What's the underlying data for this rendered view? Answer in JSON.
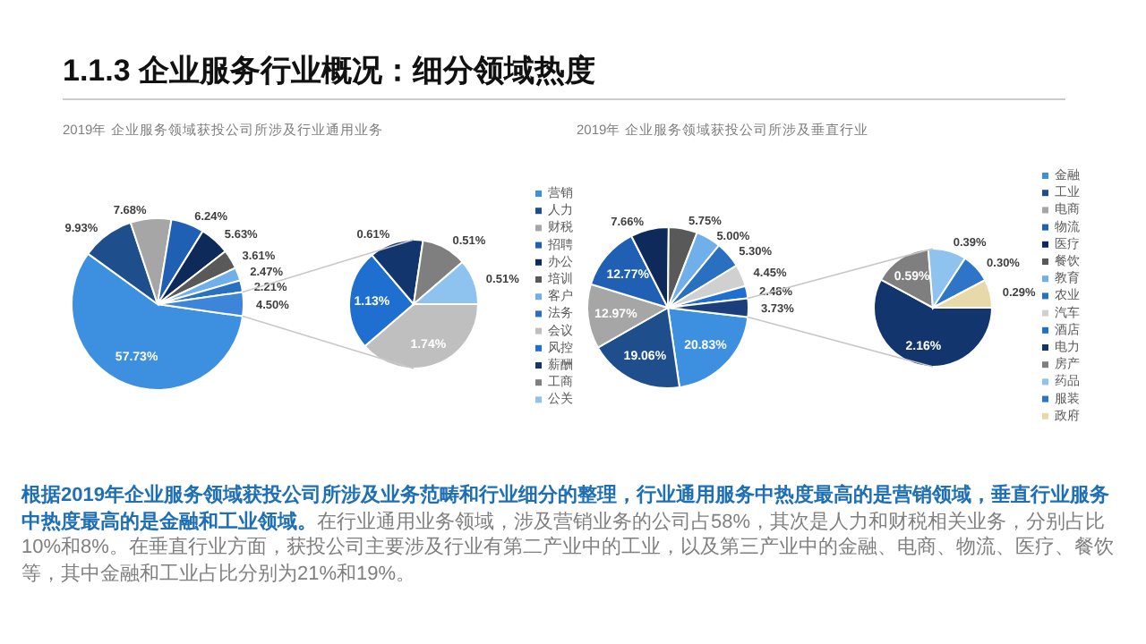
{
  "chart_data": [
    {
      "type": "other",
      "title": "1.1.3 企业服务行业概况：细分领域热度",
      "annotations": [
        "**根据2019年企业服务领域获投公司所涉及业务范畴和行业细分的整理，行业通用服务中热度最高的是营销领域，垂直行业服务中热度最高的是金融和工业领域。**在行业通用业务领域，涉及营销业务的公司占58%，其次是人力和财税相关业务，分别占比10%和8%。在垂直行业方面，获投公司主要涉及行业有第二产业中的工业，以及第三产业中的金融、电商、物流、医疗、餐饮等，其中金融和工业占比分别为21%和19%。"
      ]
    },
    {
      "type": "pie",
      "title": "2019年 企业服务领域获投公司所涉及行业通用业务",
      "categories": [
        "营销",
        "人力",
        "财税",
        "招聘",
        "办公",
        "培训",
        "客户",
        "法务",
        null
      ],
      "values": [
        57.73,
        9.93,
        7.68,
        6.24,
        5.63,
        3.61,
        2.47,
        2.21,
        4.5
      ],
      "value_labels": [
        "57.73%",
        "9.93%",
        "7.68%",
        "6.24%",
        "5.63%",
        "3.61%",
        "2.47%",
        "2.21%",
        "4.50%"
      ],
      "colors": [
        "#3d8fe0",
        "#1f4e8c",
        "#a6a6a6",
        "#1f5fb4",
        "#0d2a5a",
        "#595959",
        "#6fb0ea",
        "#2a70c0",
        "#3c85d8"
      ],
      "legend": "right"
    },
    {
      "type": "pie",
      "categories": [
        "会议",
        "风控",
        "薪酬",
        "工商",
        "公关"
      ],
      "values": [
        1.74,
        1.13,
        0.61,
        0.51,
        0.51
      ],
      "value_labels": [
        "1.74%",
        "1.13%",
        "0.61%",
        "0.51%",
        "0.51%"
      ],
      "colors": [
        "#bfbfbf",
        "#1e6fcf",
        "#12356e",
        "#7f7f7f",
        "#8ec3f0"
      ],
      "legend": "right"
    },
    {
      "type": "pie",
      "title": "2019年 企业服务领域获投公司所涉及垂直行业",
      "categories": [
        "金融",
        "工业",
        "电商",
        "物流",
        "医疗",
        "餐饮",
        "教育",
        "农业",
        "汽车",
        "酒店",
        null
      ],
      "values": [
        20.83,
        19.06,
        12.97,
        12.77,
        7.66,
        5.75,
        5.0,
        5.3,
        4.45,
        2.48,
        3.73
      ],
      "value_labels": [
        "20.83%",
        "19.06%",
        "12.97%",
        "12.77%",
        "7.66%",
        "5.75%",
        "5.00%",
        "5.30%",
        "4.45%",
        "2.48%",
        "3.73%"
      ],
      "colors": [
        "#3d8fe0",
        "#1f4e8c",
        "#a6a6a6",
        "#1f5fb4",
        "#0d2a5a",
        "#595959",
        "#6fb0ea",
        "#2a70c0",
        "#d0d0d0",
        "#1e6fcf",
        "#1a3f7a"
      ],
      "legend": "right"
    },
    {
      "type": "pie",
      "categories": [
        "电力",
        "房产",
        "药品",
        "服装",
        "政府"
      ],
      "values": [
        2.16,
        0.59,
        0.39,
        0.3,
        0.29
      ],
      "value_labels": [
        "2.16%",
        "0.59%",
        "0.39%",
        "0.30%",
        "0.29%"
      ],
      "colors": [
        "#12356e",
        "#7f7f7f",
        "#8ec3f0",
        "#2e75c8",
        "#e8d9a8"
      ],
      "legend": "right"
    }
  ]
}
